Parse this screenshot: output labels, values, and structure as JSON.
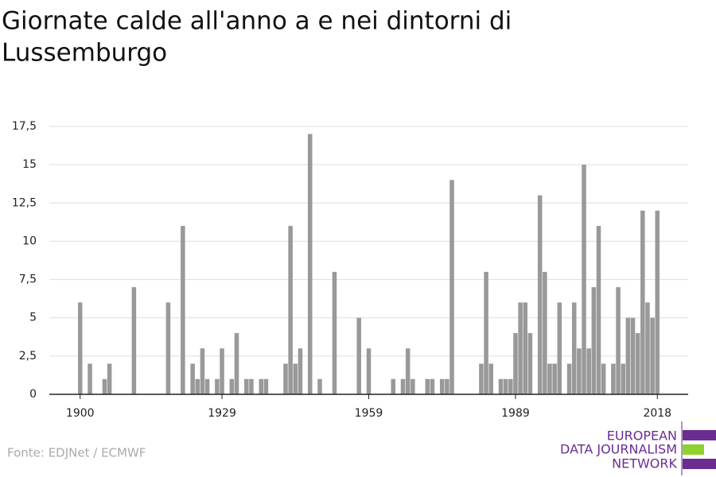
{
  "chart_data": {
    "type": "bar",
    "title_lines": [
      "Giornate calde all'anno a e nei dintorni di",
      "Lussemburgo"
    ],
    "x": [
      1900,
      1902,
      1905,
      1906,
      1911,
      1918,
      1921,
      1923,
      1924,
      1925,
      1926,
      1928,
      1929,
      1931,
      1932,
      1934,
      1935,
      1937,
      1938,
      1942,
      1943,
      1944,
      1945,
      1947,
      1949,
      1952,
      1957,
      1959,
      1964,
      1966,
      1967,
      1968,
      1971,
      1972,
      1974,
      1975,
      1976,
      1982,
      1983,
      1984,
      1986,
      1987,
      1988,
      1989,
      1990,
      1991,
      1992,
      1994,
      1995,
      1996,
      1997,
      1998,
      2000,
      2001,
      2002,
      2003,
      2004,
      2005,
      2006,
      2007,
      2009,
      2010,
      2011,
      2012,
      2013,
      2014,
      2015,
      2016,
      2017,
      2018
    ],
    "values": [
      6,
      2,
      1,
      2,
      7,
      6,
      11,
      2,
      1,
      3,
      1,
      1,
      3,
      1,
      4,
      1,
      1,
      1,
      1,
      2,
      11,
      2,
      3,
      17,
      1,
      8,
      5,
      3,
      1,
      1,
      3,
      1,
      1,
      1,
      1,
      1,
      14,
      2,
      8,
      2,
      1,
      1,
      1,
      4,
      6,
      6,
      4,
      13,
      8,
      2,
      2,
      6,
      2,
      6,
      3,
      15,
      3,
      7,
      11,
      2,
      2,
      7,
      2,
      5,
      5,
      4,
      12,
      6,
      5,
      12
    ],
    "color": "#999999",
    "xlim": [
      1893.7,
      2024.3
    ],
    "xticks": [
      1900,
      1929,
      1959,
      1989,
      2018
    ],
    "ylim": [
      0,
      17.5
    ],
    "yticks": [
      0,
      {
        "value": 2.5,
        "label": "2,5"
      },
      5,
      {
        "value": 7.5,
        "label": "7,5"
      },
      10,
      {
        "value": 12.5,
        "label": "12,5"
      },
      15,
      {
        "value": 17.5,
        "label": "17,5"
      }
    ],
    "grid": true,
    "source": "Fonte: EDJNet / ECMWF"
  },
  "logo": {
    "lines": [
      "EUROPEAN",
      "DATA JOURNALISM",
      "NETWORK"
    ]
  }
}
